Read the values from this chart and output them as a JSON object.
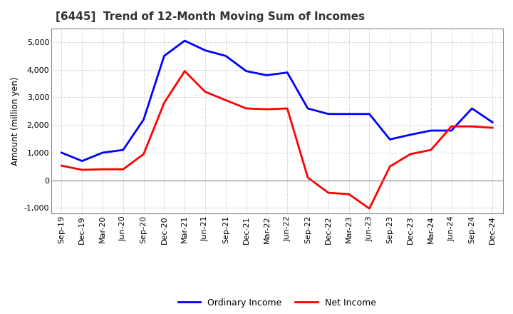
{
  "title": "[6445]  Trend of 12-Month Moving Sum of Incomes",
  "ylabel": "Amount (million yen)",
  "background_color": "#ffffff",
  "plot_bg_color": "#ffffff",
  "grid_color": "#aaaaaa",
  "title_color": "#333333",
  "x_labels": [
    "Sep-19",
    "Dec-19",
    "Mar-20",
    "Jun-20",
    "Sep-20",
    "Dec-20",
    "Mar-21",
    "Jun-21",
    "Sep-21",
    "Dec-21",
    "Mar-22",
    "Jun-22",
    "Sep-22",
    "Dec-22",
    "Mar-23",
    "Jun-23",
    "Sep-23",
    "Dec-23",
    "Mar-24",
    "Jun-24",
    "Sep-24",
    "Dec-24"
  ],
  "ordinary_income": [
    1000,
    700,
    1000,
    1100,
    2200,
    4500,
    5050,
    4700,
    4500,
    3950,
    3800,
    3900,
    2600,
    2400,
    2400,
    2400,
    1480,
    1650,
    1800,
    1800,
    2600,
    2100
  ],
  "net_income": [
    530,
    380,
    400,
    400,
    950,
    2800,
    3950,
    3200,
    2900,
    2600,
    2570,
    2600,
    100,
    -450,
    -500,
    -1020,
    500,
    950,
    1100,
    1950,
    1950,
    1900
  ],
  "ordinary_color": "#0000ff",
  "net_color": "#ff0000",
  "ylim": [
    -1200,
    5500
  ],
  "yticks": [
    -1000,
    0,
    1000,
    2000,
    3000,
    4000,
    5000
  ],
  "line_width": 2.0,
  "title_fontsize": 11,
  "label_fontsize": 8,
  "ylabel_fontsize": 8.5,
  "legend_fontsize": 9
}
